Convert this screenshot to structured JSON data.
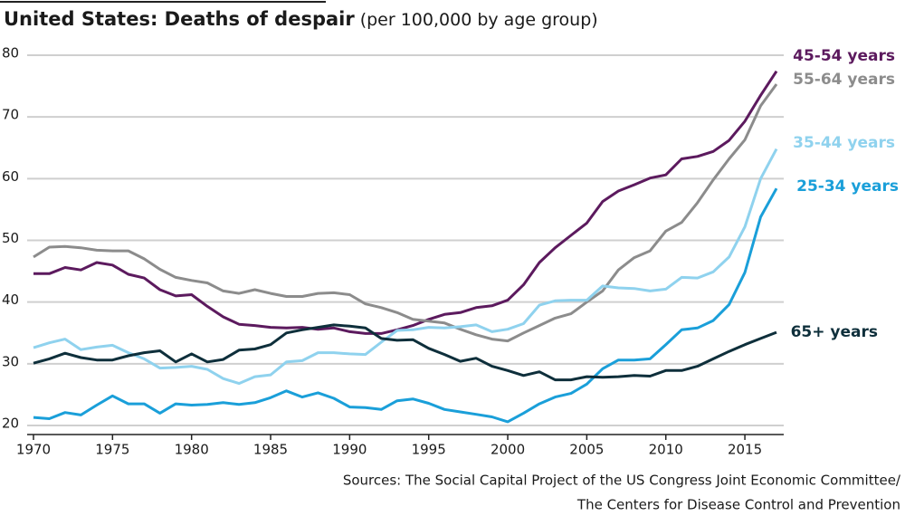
{
  "chart_data": {
    "type": "line",
    "title": "United States: Deaths of despair",
    "subtitle": "(per 100,000 by age group)",
    "source": [
      "Sources: The Social Capital Project of the US Congress Joint Economic Committee/",
      "The Centers for Disease Control and Prevention"
    ],
    "x": [
      1970,
      1971,
      1972,
      1973,
      1974,
      1975,
      1976,
      1977,
      1978,
      1979,
      1980,
      1981,
      1982,
      1983,
      1984,
      1985,
      1986,
      1987,
      1988,
      1989,
      1990,
      1991,
      1992,
      1993,
      1994,
      1995,
      1996,
      1997,
      1998,
      1999,
      2000,
      2001,
      2002,
      2003,
      2004,
      2005,
      2006,
      2007,
      2008,
      2009,
      2010,
      2011,
      2012,
      2013,
      2014,
      2015,
      2016,
      2017
    ],
    "xlim": [
      1970,
      2017
    ],
    "xticks": [
      1970,
      1975,
      1980,
      1985,
      1990,
      1995,
      2000,
      2005,
      2010,
      2015
    ],
    "ylim": [
      20,
      80
    ],
    "yticks": [
      20,
      30,
      40,
      50,
      60,
      70,
      80
    ],
    "grid": true,
    "series": [
      {
        "name": "45-54 years",
        "color": "#5c1a5e",
        "values": [
          44.6,
          44.6,
          45.6,
          45.2,
          46.4,
          46.0,
          44.5,
          43.9,
          42.0,
          41.0,
          41.2,
          39.3,
          37.6,
          36.4,
          36.2,
          35.9,
          35.8,
          35.9,
          35.6,
          35.8,
          35.2,
          34.9,
          34.9,
          35.5,
          36.2,
          37.2,
          38.0,
          38.3,
          39.1,
          39.4,
          40.3,
          42.8,
          46.4,
          48.8,
          50.8,
          52.8,
          56.3,
          58.0,
          59.0,
          60.1,
          60.6,
          63.2,
          63.6,
          64.4,
          66.2,
          69.3,
          73.5,
          77.4
        ]
      },
      {
        "name": "55-64 years",
        "color": "#8c8c8c",
        "values": [
          47.3,
          48.9,
          49.0,
          48.8,
          48.4,
          48.3,
          48.3,
          47.0,
          45.3,
          44.0,
          43.5,
          43.1,
          41.8,
          41.4,
          42.0,
          41.4,
          40.9,
          40.9,
          41.4,
          41.5,
          41.2,
          39.7,
          39.1,
          38.3,
          37.2,
          36.9,
          36.6,
          35.6,
          34.7,
          34.0,
          33.7,
          35.0,
          36.2,
          37.4,
          38.1,
          40.0,
          41.8,
          45.2,
          47.2,
          48.3,
          51.5,
          52.9,
          56.1,
          59.8,
          63.2,
          66.3,
          71.8,
          75.3
        ]
      },
      {
        "name": "35-44 years",
        "color": "#8fd2ee",
        "values": [
          32.6,
          33.4,
          34.0,
          32.3,
          32.7,
          33.0,
          31.8,
          30.8,
          29.3,
          29.4,
          29.6,
          29.1,
          27.6,
          26.8,
          27.9,
          28.2,
          30.3,
          30.5,
          31.8,
          31.8,
          31.6,
          31.5,
          33.5,
          35.4,
          35.5,
          35.9,
          35.8,
          36.0,
          36.3,
          35.2,
          35.6,
          36.5,
          39.5,
          40.2,
          40.3,
          40.3,
          42.6,
          42.3,
          42.2,
          41.8,
          42.1,
          44.0,
          43.9,
          44.9,
          47.3,
          52.2,
          60.0,
          64.8
        ]
      },
      {
        "name": "25-34 years",
        "color": "#1a9fd9",
        "values": [
          21.3,
          21.1,
          22.1,
          21.7,
          23.3,
          24.8,
          23.5,
          23.5,
          22.0,
          23.5,
          23.3,
          23.4,
          23.7,
          23.4,
          23.7,
          24.5,
          25.6,
          24.6,
          25.3,
          24.4,
          23.0,
          22.9,
          22.6,
          24.0,
          24.3,
          23.6,
          22.6,
          22.2,
          21.8,
          21.4,
          20.6,
          22.0,
          23.5,
          24.6,
          25.2,
          26.7,
          29.2,
          30.6,
          30.6,
          30.8,
          33.1,
          35.5,
          35.8,
          37.0,
          39.6,
          44.8,
          53.8,
          58.4
        ]
      },
      {
        "name": "65+ years",
        "color": "#0e2f3b",
        "values": [
          30.1,
          30.8,
          31.7,
          31.0,
          30.6,
          30.6,
          31.3,
          31.8,
          32.1,
          30.3,
          31.6,
          30.3,
          30.7,
          32.2,
          32.4,
          33.1,
          35.0,
          35.5,
          35.9,
          36.3,
          36.1,
          35.8,
          34.1,
          33.8,
          33.9,
          32.5,
          31.5,
          30.4,
          30.9,
          29.6,
          28.9,
          28.1,
          28.7,
          27.4,
          27.4,
          27.9,
          27.8,
          27.9,
          28.1,
          28.0,
          28.9,
          28.9,
          29.6,
          30.8,
          32.0,
          33.1,
          34.1,
          35.1
        ]
      }
    ]
  }
}
